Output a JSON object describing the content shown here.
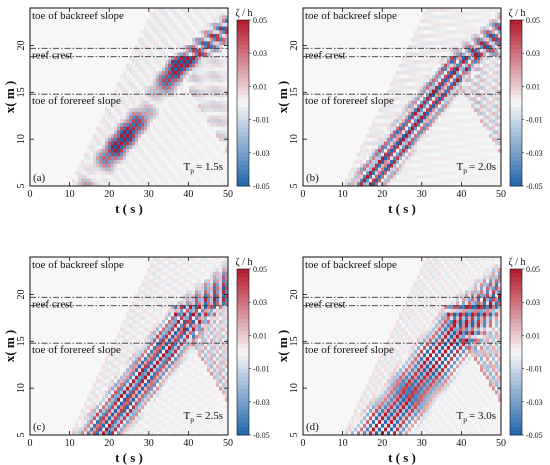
{
  "figure": {
    "colorbar_label": "ζ / h",
    "axis_x_label": "t ( s )",
    "axis_y_label": "x( m )",
    "annotations": {
      "backreef": "toe of backreef slope",
      "crest": "reef crest",
      "forereef": "toe of forereef slope"
    }
  },
  "colors": {
    "negative": "#2166ac",
    "neutral": "#f7f7f7",
    "positive": "#b2182b",
    "reference_line": "#333333"
  },
  "chart_data": [
    {
      "type": "heatmap",
      "panel_label": "(a)",
      "period_label": "T",
      "period_subscript": "p",
      "period_value": "= 1.5s",
      "period_s": 1.5,
      "xlabel": "t ( s )",
      "ylabel": "x( m )",
      "xlim": [
        0,
        50
      ],
      "ylim": [
        5,
        24
      ],
      "xticks": [
        0,
        10,
        20,
        30,
        40,
        50
      ],
      "yticks": [
        5,
        10,
        15,
        20
      ],
      "reference_lines_x_m": [
        14.8,
        18.8,
        19.7
      ],
      "colorbar": {
        "label": "ζ / h",
        "min": -0.05,
        "max": 0.05,
        "ticks": [
          0.05,
          0.03,
          0.01,
          -0.01,
          -0.03,
          -0.05
        ]
      }
    },
    {
      "type": "heatmap",
      "panel_label": "(b)",
      "period_label": "T",
      "period_subscript": "p",
      "period_value": "= 2.0s",
      "period_s": 2.0,
      "xlabel": "t ( s )",
      "ylabel": "x( m )",
      "xlim": [
        0,
        50
      ],
      "ylim": [
        5,
        24
      ],
      "xticks": [
        0,
        10,
        20,
        30,
        40,
        50
      ],
      "yticks": [
        5,
        10,
        15,
        20
      ],
      "reference_lines_x_m": [
        14.8,
        18.8,
        19.7
      ],
      "colorbar": {
        "label": "ζ / h",
        "min": -0.05,
        "max": 0.05,
        "ticks": [
          0.05,
          0.03,
          0.01,
          -0.01,
          -0.03,
          -0.05
        ]
      }
    },
    {
      "type": "heatmap",
      "panel_label": "(c)",
      "period_label": "T",
      "period_subscript": "p",
      "period_value": "= 2.5s",
      "period_s": 2.5,
      "xlabel": "t ( s )",
      "ylabel": "x( m )",
      "xlim": [
        0,
        50
      ],
      "ylim": [
        5,
        24
      ],
      "xticks": [
        0,
        10,
        20,
        30,
        40,
        50
      ],
      "yticks": [
        5,
        10,
        15,
        20
      ],
      "reference_lines_x_m": [
        14.8,
        18.8,
        19.7
      ],
      "colorbar": {
        "label": "ζ / h",
        "min": -0.05,
        "max": 0.05,
        "ticks": [
          0.05,
          0.03,
          0.01,
          -0.01,
          -0.03,
          -0.05
        ]
      }
    },
    {
      "type": "heatmap",
      "panel_label": "(d)",
      "period_label": "T",
      "period_subscript": "p",
      "period_value": "= 3.0s",
      "period_s": 3.0,
      "xlabel": "t ( s )",
      "ylabel": "x( m )",
      "xlim": [
        0,
        50
      ],
      "ylim": [
        5,
        24
      ],
      "xticks": [
        0,
        10,
        20,
        30,
        40,
        50
      ],
      "yticks": [
        5,
        10,
        15,
        20
      ],
      "reference_lines_x_m": [
        14.8,
        18.8,
        19.7
      ],
      "colorbar": {
        "label": "ζ / h",
        "min": -0.05,
        "max": 0.05,
        "ticks": [
          0.05,
          0.03,
          0.01,
          -0.01,
          -0.03,
          -0.05
        ]
      }
    }
  ]
}
